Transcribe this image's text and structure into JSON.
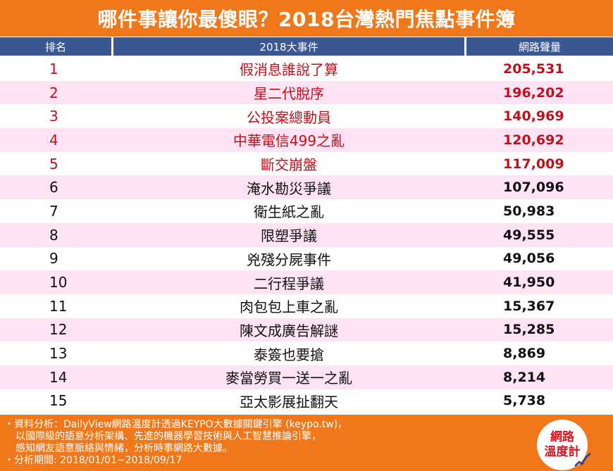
{
  "title": "哪件事讓你最傻眼？2018台灣熱門焦點事件簿",
  "headers": {
    "rank": "排名",
    "event": "2018大事件",
    "volume": "網路聲量"
  },
  "rows": [
    {
      "rank": "1",
      "event": "假消息誰說了算",
      "volume": "205,531"
    },
    {
      "rank": "2",
      "event": "星二代脫序",
      "volume": "196,202"
    },
    {
      "rank": "3",
      "event": "公投案總動員",
      "volume": "140,969"
    },
    {
      "rank": "4",
      "event": "中華電信499之亂",
      "volume": "120,692"
    },
    {
      "rank": "5",
      "event": "斷交崩盤",
      "volume": "117,009"
    },
    {
      "rank": "6",
      "event": "淹水勘災爭議",
      "volume": "107,096"
    },
    {
      "rank": "7",
      "event": "衛生紙之亂",
      "volume": "50,983"
    },
    {
      "rank": "8",
      "event": "限塑爭議",
      "volume": "49,555"
    },
    {
      "rank": "9",
      "event": "兇殘分屍事件",
      "volume": "49,056"
    },
    {
      "rank": "10",
      "event": "二行程爭議",
      "volume": "41,950"
    },
    {
      "rank": "11",
      "event": "肉包包上車之亂",
      "volume": "15,367"
    },
    {
      "rank": "12",
      "event": "陳文成廣告解謎",
      "volume": "15,285"
    },
    {
      "rank": "13",
      "event": "泰簽也要搶",
      "volume": "8,869"
    },
    {
      "rank": "14",
      "event": "麥當勞買一送一之亂",
      "volume": "8,214"
    },
    {
      "rank": "15",
      "event": "亞太影展扯翻天",
      "volume": "5,738"
    }
  ],
  "footer": {
    "line1": "・資料分析：DailyView網路溫度計透過KEYPO大數據關鍵引擎 (keypo.tw)，",
    "line2": "以國際級的語意分析架構、先進的機器學習技術與人工智慧推論引擎，",
    "line3": "感知網友語意脈絡與情緒，分析時事網路大數據。",
    "line4": "・分析期間: 2018/01/01~2018/09/17"
  },
  "logo": {
    "line1": "網路",
    "line2": "溫度計"
  },
  "colors": {
    "header": "#f0771a",
    "table_header": "#395893",
    "alt_row": "#fde3f3",
    "highlight": "#c0101a"
  }
}
